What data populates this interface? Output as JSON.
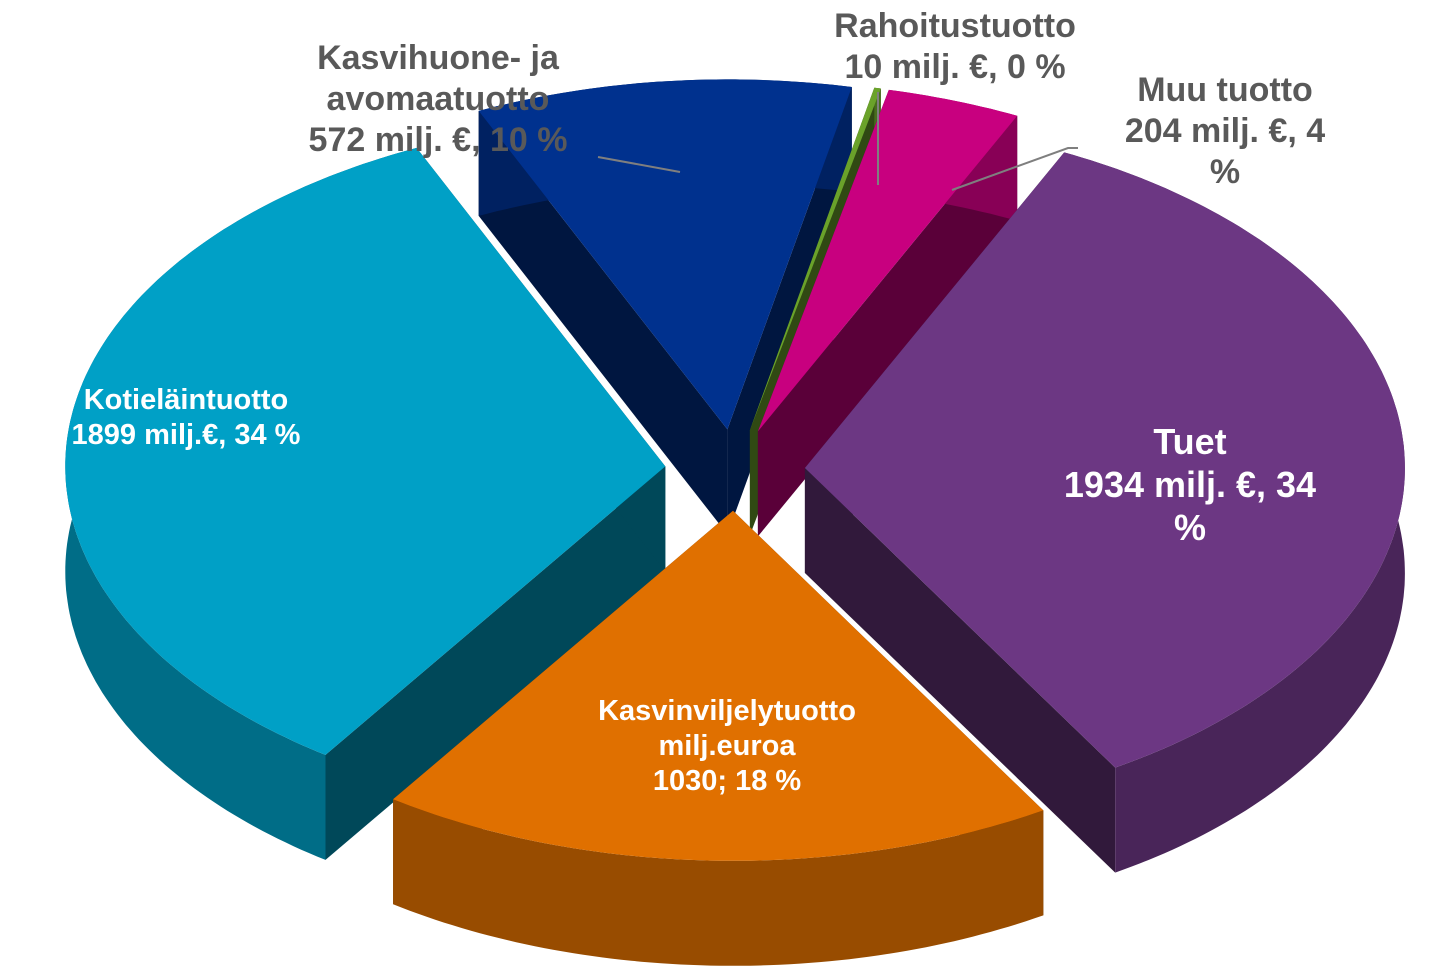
{
  "chart_data": {
    "type": "pie",
    "categories": [
      "Muu tuotto",
      "Tuet",
      "Kasvinviljelytuotto",
      "Kotieläintuotto",
      "Kasvihuone- ja\navomaatuotto",
      "Rahoitustuotto"
    ],
    "values": [
      204,
      1934,
      1030,
      1899,
      572,
      10
    ],
    "value_labels": [
      "204 milj. €, 4 %",
      "1934 milj. €, 34 %",
      "milj.euroa\n1030; 18 %",
      "1899 milj.€, 34 %",
      "572 milj. €, 10 %",
      "10 milj. €, 0 %"
    ],
    "colors": [
      "#c8007f",
      "#6c3783",
      "#e07000",
      "#00a0c6",
      "#00318e",
      "#6aa22a"
    ]
  }
}
